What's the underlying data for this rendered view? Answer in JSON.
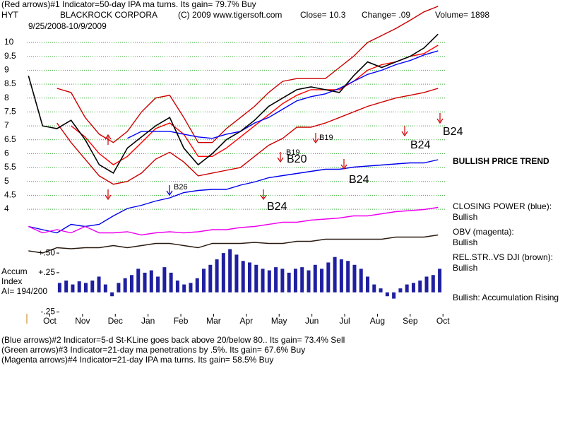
{
  "header": {
    "line1": "(Red arrows)#1 Indicator=50-day IPA ma turns. Its gain= 79.7% Buy",
    "symbol": "HYT",
    "company": "BLACKROCK CORPORA",
    "copyright": "(C) 2009 www.tigersoft.com",
    "close": "Close=  10.3",
    "change": "Change= .09",
    "volume": "Volume= 1898",
    "dates": "9/25/2008-10/9/2009"
  },
  "chart_data": [
    {
      "type": "line",
      "x": [
        -0.65,
        -0.22,
        0.22,
        0.65,
        1.08,
        1.51,
        1.94,
        2.37,
        2.8,
        3.23,
        3.66,
        4.09,
        4.53,
        4.96,
        5.39,
        5.82,
        6.25,
        6.68,
        7.11,
        7.54,
        7.97,
        8.41,
        8.84,
        9.27,
        9.7,
        10.13,
        10.56,
        11.0,
        11.42,
        11.85
      ],
      "xlim": [
        -0.7,
        12.06
      ],
      "xticks": [
        {
          "value": 0,
          "label": "Oct"
        },
        {
          "value": 1,
          "label": "Nov"
        },
        {
          "value": 2,
          "label": "Dec"
        },
        {
          "value": 3,
          "label": "Jan"
        },
        {
          "value": 4,
          "label": "Feb"
        },
        {
          "value": 5,
          "label": "Mar"
        },
        {
          "value": 6,
          "label": "Apr"
        },
        {
          "value": 7,
          "label": "May"
        },
        {
          "value": 8,
          "label": "Jun"
        },
        {
          "value": 9,
          "label": "Jul"
        },
        {
          "value": 10,
          "label": "Aug"
        },
        {
          "value": 11,
          "label": "Sep"
        },
        {
          "value": 12,
          "label": "Oct"
        }
      ],
      "ylim": [
        3.9,
        11.4
      ],
      "yticks": [
        4,
        4.5,
        5,
        5.5,
        6,
        6.5,
        7,
        7.5,
        8,
        8.5,
        9,
        9.5,
        10
      ],
      "grid": true,
      "series": [
        {
          "name": "Upper band",
          "color": "#cc0000",
          "values": [
            null,
            null,
            8.35,
            8.2,
            7.3,
            6.7,
            6.4,
            6.8,
            7.5,
            8.0,
            8.1,
            7.3,
            6.4,
            6.4,
            6.9,
            7.3,
            7.7,
            8.2,
            8.6,
            8.7,
            8.7,
            8.7,
            9.1,
            9.5,
            10.0,
            10.25,
            10.5,
            10.8,
            11.1,
            11.3
          ]
        },
        {
          "name": "Lower band",
          "color": "#cc0000",
          "values": [
            null,
            null,
            7.1,
            6.4,
            5.8,
            5.2,
            4.9,
            5.0,
            5.3,
            5.8,
            6.05,
            5.7,
            5.2,
            5.3,
            5.4,
            5.5,
            5.9,
            6.3,
            6.55,
            6.95,
            6.95,
            7.1,
            7.3,
            7.5,
            7.7,
            7.85,
            8.0,
            8.1,
            8.2,
            8.35
          ]
        },
        {
          "name": "21-day ma",
          "color": "#ff0000",
          "values": [
            null,
            null,
            null,
            7.0,
            6.6,
            6.0,
            5.6,
            5.9,
            6.4,
            6.9,
            7.1,
            6.7,
            5.9,
            5.9,
            6.2,
            6.6,
            7.0,
            7.4,
            7.8,
            8.1,
            8.3,
            8.3,
            8.3,
            8.6,
            9.0,
            9.2,
            9.3,
            9.5,
            9.6,
            9.9
          ]
        },
        {
          "name": "50-day ma",
          "color": "#0000ff",
          "values": [
            null,
            null,
            null,
            null,
            null,
            null,
            null,
            6.55,
            6.8,
            6.8,
            6.8,
            6.7,
            6.6,
            6.55,
            6.7,
            6.8,
            7.1,
            7.3,
            7.6,
            7.9,
            8.05,
            8.15,
            8.35,
            8.6,
            8.85,
            9.0,
            9.2,
            9.35,
            9.55,
            9.7
          ]
        },
        {
          "name": "Close",
          "color": "#000000",
          "values": [
            8.8,
            7.0,
            6.9,
            7.2,
            6.5,
            5.6,
            5.3,
            6.2,
            6.6,
            7.0,
            7.3,
            6.2,
            5.6,
            6.0,
            6.5,
            6.8,
            7.2,
            7.7,
            8.0,
            8.3,
            8.4,
            8.3,
            8.2,
            8.8,
            9.3,
            9.1,
            9.3,
            9.5,
            9.8,
            10.3
          ]
        }
      ],
      "annotations": [
        "B24",
        "B24",
        "B20",
        "B19",
        "B19",
        "B24",
        "B26",
        "B24",
        "BULLISH PRICE TREND"
      ]
    },
    {
      "type": "line",
      "x": [
        -0.65,
        -0.22,
        0.22,
        0.65,
        1.08,
        1.51,
        1.94,
        2.37,
        2.8,
        3.23,
        3.66,
        4.09,
        4.53,
        4.96,
        5.39,
        5.82,
        6.25,
        6.68,
        7.11,
        7.54,
        7.97,
        8.41,
        8.84,
        9.27,
        9.7,
        10.13,
        10.56,
        11.0,
        11.42,
        11.85
      ],
      "xlim": [
        -0.7,
        12.06
      ],
      "ylim": [
        0,
        100
      ],
      "series": [
        {
          "name": "CLOSING POWER (blue):",
          "status": "Bullish",
          "color": "#0000ee",
          "values": [
            33,
            30,
            27,
            35,
            33,
            35,
            43,
            50,
            53,
            57,
            60,
            65,
            67,
            68,
            68,
            72,
            75,
            79,
            81,
            83,
            85,
            87,
            87,
            89,
            90,
            91,
            92,
            93,
            93,
            96
          ]
        },
        {
          "name": "OBV (magenta):",
          "status": "Bullish",
          "color": "#ee00ee",
          "values": [
            33,
            27,
            30,
            27,
            33,
            27,
            27,
            28,
            25,
            27,
            28,
            27,
            28,
            30,
            30,
            32,
            33,
            35,
            37,
            37,
            39,
            40,
            41,
            43,
            43,
            45,
            47,
            48,
            49,
            51
          ]
        },
        {
          "name": "REL.STR..VS DJI (brown):",
          "status": "Bullish",
          "color": "#2a1a10",
          "values": [
            10,
            8,
            13,
            12,
            13,
            13,
            15,
            13,
            15,
            17,
            17,
            15,
            13,
            17,
            17,
            17,
            18,
            17,
            17,
            19,
            19,
            21,
            21,
            21,
            21,
            21,
            23,
            23,
            23,
            25
          ]
        }
      ]
    },
    {
      "type": "bar",
      "title": "Accum",
      "subtitle": "Index",
      "note": "AI= 194/200",
      "status": "Bullish: Accumulation Rising",
      "color": "#1f1fa0",
      "x": [
        0.3,
        0.5,
        0.7,
        0.9,
        1.1,
        1.3,
        1.5,
        1.7,
        1.9,
        2.1,
        2.3,
        2.5,
        2.7,
        2.9,
        3.1,
        3.3,
        3.5,
        3.7,
        3.9,
        4.1,
        4.3,
        4.5,
        4.7,
        4.9,
        5.1,
        5.3,
        5.5,
        5.7,
        5.9,
        6.1,
        6.3,
        6.5,
        6.7,
        6.9,
        7.1,
        7.3,
        7.5,
        7.7,
        7.9,
        8.1,
        8.3,
        8.5,
        8.7,
        8.9,
        9.1,
        9.3,
        9.5,
        9.7,
        9.9,
        10.1,
        10.3,
        10.5,
        10.7,
        10.9,
        11.1,
        11.3,
        11.5,
        11.7,
        11.9
      ],
      "values": [
        0.12,
        0.15,
        0.1,
        0.14,
        0.12,
        0.15,
        0.2,
        0.1,
        -0.05,
        0.12,
        0.18,
        0.22,
        0.3,
        0.25,
        0.28,
        0.2,
        0.32,
        0.25,
        0.15,
        0.1,
        0.12,
        0.18,
        0.3,
        0.35,
        0.42,
        0.5,
        0.55,
        0.48,
        0.4,
        0.38,
        0.35,
        0.3,
        0.28,
        0.32,
        0.3,
        0.25,
        0.3,
        0.32,
        0.28,
        0.35,
        0.3,
        0.38,
        0.45,
        0.42,
        0.4,
        0.35,
        0.3,
        0.2,
        0.1,
        0.05,
        -0.05,
        -0.08,
        0.05,
        0.1,
        0.12,
        0.15,
        0.2,
        0.22,
        0.3
      ],
      "xlim": [
        -0.7,
        12.06
      ],
      "ylim": [
        -0.3,
        0.6
      ],
      "yticks": [
        {
          "value": 0.5,
          "label": "+.50"
        },
        {
          "value": 0.25,
          "label": "+.25"
        },
        {
          "value": -0.25,
          "label": "-.25"
        }
      ]
    }
  ],
  "footer": [
    "(Blue arrows)#2 Indicator=5-d St-KLine goes back above 20/below 80.. Its gain= 73.4% Sell",
    "(Green arrows)#3 Indicator=21-day ma penetrations by .5%. Its gain= 67.6% Buy",
    "(Magenta arrows)#4 Indicator=21-day IPA ma turns. Its gain= 58.5% Buy"
  ]
}
